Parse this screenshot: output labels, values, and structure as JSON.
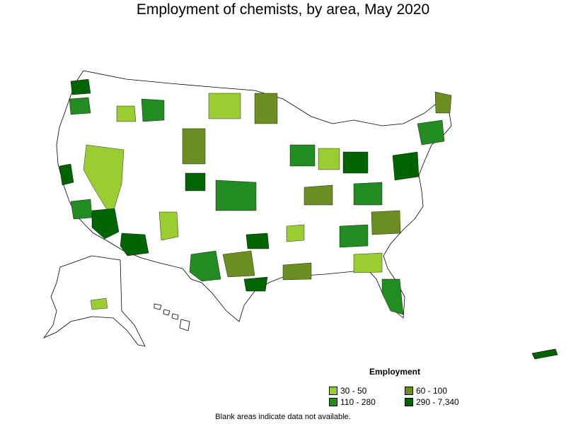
{
  "title": "Employment of chemists, by area, May 2020",
  "legend": {
    "title": "Employment",
    "items": [
      {
        "label": "30 - 50",
        "color": "#9ACD32"
      },
      {
        "label": "60 - 100",
        "color": "#6B8E23"
      },
      {
        "label": "110 - 280",
        "color": "#228B22"
      },
      {
        "label": "290 - 7,340",
        "color": "#006400"
      }
    ]
  },
  "note": "Blank areas indicate data not available.",
  "map": {
    "regions": [
      "contiguous-us",
      "alaska",
      "hawaii",
      "puerto-rico"
    ],
    "fill_none": "#ffffff",
    "stroke": "#000000"
  }
}
